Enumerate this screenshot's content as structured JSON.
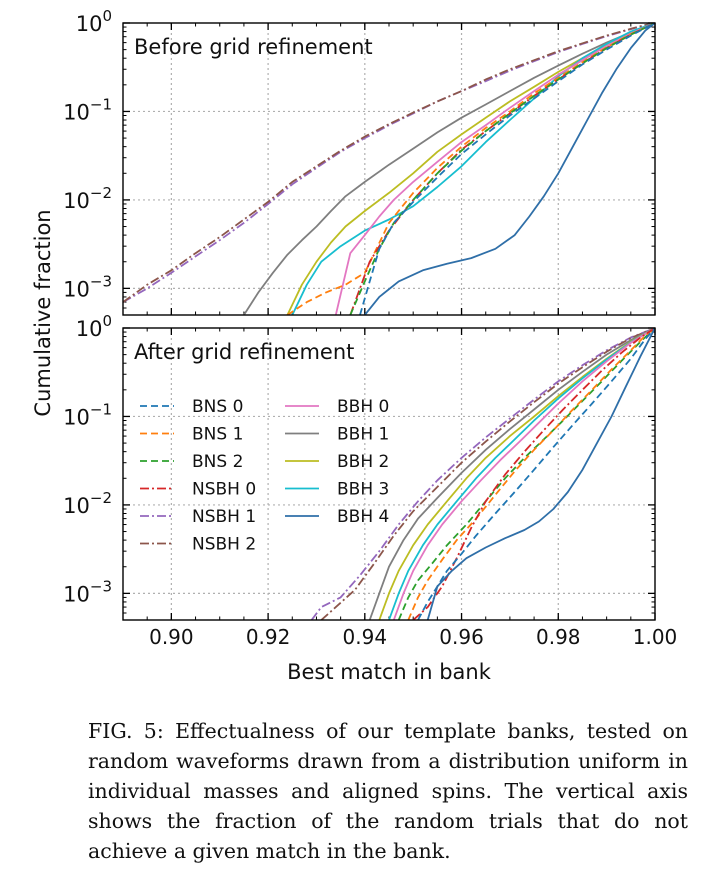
{
  "figure": {
    "ylabel": "Cumulative fraction",
    "xlabel": "Best match in bank",
    "xlim": [
      0.89,
      1.0
    ],
    "xticks": [
      {
        "v": 0.9,
        "label": "0.90"
      },
      {
        "v": 0.92,
        "label": "0.92"
      },
      {
        "v": 0.94,
        "label": "0.94"
      },
      {
        "v": 0.96,
        "label": "0.96"
      },
      {
        "v": 0.98,
        "label": "0.98"
      },
      {
        "v": 1.0,
        "label": "1.00"
      }
    ],
    "yticks": [
      {
        "exp": 0,
        "base": "10",
        "sup": "0"
      },
      {
        "exp": -1,
        "base": "10",
        "sup": "−1"
      },
      {
        "exp": -2,
        "base": "10",
        "sup": "−2"
      },
      {
        "exp": -3,
        "base": "10",
        "sup": "−3"
      }
    ]
  },
  "colors": {
    "BNS 0": "#1f77b4",
    "BNS 1": "#ff7f0e",
    "BNS 2": "#2ca02c",
    "NSBH 0": "#d62728",
    "NSBH 1": "#9467bd",
    "NSBH 2": "#8c564b",
    "BBH 0": "#e377c2",
    "BBH 1": "#7f7f7f",
    "BBH 2": "#bcbd22",
    "BBH 3": "#17becf",
    "BBH 4": "#2f6fa8"
  },
  "legend": [
    {
      "name": "BNS 0",
      "style": "dashed"
    },
    {
      "name": "BNS 1",
      "style": "dashed"
    },
    {
      "name": "BNS 2",
      "style": "dashed"
    },
    {
      "name": "NSBH 0",
      "style": "dashdot"
    },
    {
      "name": "NSBH 1",
      "style": "dashdot"
    },
    {
      "name": "NSBH 2",
      "style": "dashdot"
    },
    {
      "name": "BBH 0",
      "style": "solid"
    },
    {
      "name": "BBH 1",
      "style": "solid"
    },
    {
      "name": "BBH 2",
      "style": "solid"
    },
    {
      "name": "BBH 3",
      "style": "solid"
    },
    {
      "name": "BBH 4",
      "style": "solid"
    }
  ],
  "chart_data": [
    {
      "type": "line",
      "title": "Before grid refinement",
      "xlabel": "Best match in bank",
      "ylabel": "Cumulative fraction",
      "yscale": "log",
      "xlim": [
        0.89,
        1.0
      ],
      "ylim": [
        0.0005,
        1.0
      ],
      "grid": true,
      "series": [
        {
          "name": "NSBH 1",
          "style": "dashdot",
          "x": [
            0.89,
            0.895,
            0.9,
            0.905,
            0.91,
            0.915,
            0.92,
            0.925,
            0.93,
            0.935,
            0.94,
            0.945,
            0.95,
            0.955,
            0.96,
            0.965,
            0.97,
            0.975,
            0.98,
            0.985,
            0.99,
            0.995,
            0.998,
            1.0
          ],
          "y": [
            0.0007,
            0.001,
            0.0015,
            0.0023,
            0.0035,
            0.0055,
            0.009,
            0.015,
            0.023,
            0.035,
            0.05,
            0.07,
            0.095,
            0.13,
            0.17,
            0.22,
            0.29,
            0.37,
            0.47,
            0.58,
            0.71,
            0.85,
            0.95,
            1.0
          ]
        },
        {
          "name": "NSBH 2",
          "style": "dashdot",
          "x": [
            0.89,
            0.895,
            0.9,
            0.905,
            0.91,
            0.915,
            0.92,
            0.925,
            0.93,
            0.935,
            0.94,
            0.945,
            0.95,
            0.955,
            0.96,
            0.965,
            0.97,
            0.975,
            0.98,
            0.985,
            0.99,
            0.995,
            0.998,
            1.0
          ],
          "y": [
            0.0007,
            0.0011,
            0.0016,
            0.0025,
            0.0038,
            0.006,
            0.0095,
            0.016,
            0.024,
            0.036,
            0.052,
            0.072,
            0.097,
            0.13,
            0.17,
            0.23,
            0.3,
            0.38,
            0.48,
            0.59,
            0.72,
            0.86,
            0.95,
            1.0
          ]
        },
        {
          "name": "BBH 1",
          "style": "solid",
          "x": [
            0.915,
            0.918,
            0.921,
            0.924,
            0.927,
            0.93,
            0.933,
            0.936,
            0.94,
            0.945,
            0.95,
            0.955,
            0.96,
            0.965,
            0.97,
            0.975,
            0.98,
            0.985,
            0.99,
            0.995,
            1.0
          ],
          "y": [
            0.0005,
            0.0009,
            0.0015,
            0.0024,
            0.0035,
            0.005,
            0.0075,
            0.011,
            0.016,
            0.025,
            0.038,
            0.058,
            0.085,
            0.12,
            0.17,
            0.24,
            0.33,
            0.45,
            0.6,
            0.78,
            1.0
          ]
        },
        {
          "name": "BBH 2",
          "style": "solid",
          "x": [
            0.924,
            0.927,
            0.93,
            0.933,
            0.936,
            0.94,
            0.945,
            0.95,
            0.955,
            0.96,
            0.965,
            0.97,
            0.975,
            0.98,
            0.985,
            0.99,
            0.995,
            1.0
          ],
          "y": [
            0.0005,
            0.0011,
            0.002,
            0.0033,
            0.005,
            0.0075,
            0.012,
            0.02,
            0.035,
            0.055,
            0.085,
            0.13,
            0.19,
            0.28,
            0.4,
            0.56,
            0.76,
            1.0
          ]
        },
        {
          "name": "BBH 3",
          "style": "solid",
          "x": [
            0.925,
            0.928,
            0.931,
            0.935,
            0.94,
            0.945,
            0.95,
            0.955,
            0.96,
            0.965,
            0.97,
            0.975,
            0.98,
            0.985,
            0.99,
            0.995,
            1.0
          ],
          "y": [
            0.0005,
            0.0011,
            0.002,
            0.003,
            0.0045,
            0.006,
            0.0085,
            0.014,
            0.024,
            0.045,
            0.08,
            0.14,
            0.25,
            0.4,
            0.58,
            0.8,
            1.0
          ]
        },
        {
          "name": "BBH 0",
          "style": "solid",
          "x": [
            0.934,
            0.937,
            0.94,
            0.943,
            0.946,
            0.95,
            0.955,
            0.96,
            0.965,
            0.97,
            0.975,
            0.98,
            0.985,
            0.99,
            0.995,
            1.0
          ],
          "y": [
            0.0005,
            0.0025,
            0.004,
            0.0065,
            0.01,
            0.016,
            0.027,
            0.045,
            0.07,
            0.11,
            0.17,
            0.26,
            0.38,
            0.55,
            0.76,
            1.0
          ]
        },
        {
          "name": "BNS 1",
          "style": "dashed",
          "x": [
            0.924,
            0.928,
            0.932,
            0.936,
            0.94,
            0.945,
            0.95,
            0.955,
            0.96,
            0.965,
            0.97,
            0.975,
            0.98,
            0.985,
            0.99,
            0.995,
            1.0
          ],
          "y": [
            0.0005,
            0.0007,
            0.0009,
            0.0011,
            0.0015,
            0.0055,
            0.012,
            0.023,
            0.04,
            0.065,
            0.1,
            0.16,
            0.24,
            0.36,
            0.53,
            0.75,
            1.0
          ]
        },
        {
          "name": "NSBH 0",
          "style": "dashdot",
          "x": [
            0.937,
            0.941,
            0.945,
            0.95,
            0.955,
            0.96,
            0.965,
            0.97,
            0.975,
            0.98,
            0.985,
            0.99,
            0.995,
            1.0
          ],
          "y": [
            0.0005,
            0.002,
            0.0045,
            0.01,
            0.02,
            0.037,
            0.06,
            0.095,
            0.15,
            0.23,
            0.35,
            0.52,
            0.74,
            1.0
          ]
        },
        {
          "name": "BNS 2",
          "style": "dashed",
          "x": [
            0.937,
            0.94,
            0.943,
            0.946,
            0.95,
            0.955,
            0.96,
            0.965,
            0.97,
            0.975,
            0.98,
            0.985,
            0.99,
            0.995,
            1.0
          ],
          "y": [
            0.0005,
            0.0012,
            0.0028,
            0.0055,
            0.01,
            0.02,
            0.036,
            0.06,
            0.095,
            0.15,
            0.23,
            0.35,
            0.52,
            0.74,
            1.0
          ]
        },
        {
          "name": "BNS 0",
          "style": "dashed",
          "x": [
            0.939,
            0.941,
            0.943,
            0.946,
            0.95,
            0.955,
            0.96,
            0.965,
            0.97,
            0.975,
            0.98,
            0.985,
            0.99,
            0.995,
            1.0
          ],
          "y": [
            0.0005,
            0.0012,
            0.0028,
            0.0055,
            0.0095,
            0.018,
            0.033,
            0.055,
            0.09,
            0.14,
            0.22,
            0.34,
            0.5,
            0.72,
            1.0
          ]
        },
        {
          "name": "BBH 4",
          "style": "solid",
          "x": [
            0.94,
            0.943,
            0.947,
            0.952,
            0.957,
            0.962,
            0.967,
            0.971,
            0.974,
            0.977,
            0.98,
            0.983,
            0.986,
            0.989,
            0.992,
            0.995,
            0.998,
            1.0
          ],
          "y": [
            0.0005,
            0.0008,
            0.0012,
            0.0016,
            0.0019,
            0.0022,
            0.0028,
            0.004,
            0.0065,
            0.011,
            0.02,
            0.04,
            0.08,
            0.16,
            0.3,
            0.52,
            0.82,
            1.0
          ]
        }
      ]
    },
    {
      "type": "line",
      "title": "After grid refinement",
      "xlabel": "Best match in bank",
      "ylabel": "Cumulative fraction",
      "yscale": "log",
      "xlim": [
        0.89,
        1.0
      ],
      "ylim": [
        0.0005,
        1.0
      ],
      "grid": true,
      "legend_position": "left",
      "series": [
        {
          "name": "NSBH 1",
          "style": "dashdot",
          "x": [
            0.929,
            0.931,
            0.935,
            0.939,
            0.943,
            0.947,
            0.951,
            0.955,
            0.96,
            0.965,
            0.97,
            0.975,
            0.98,
            0.985,
            0.99,
            0.995,
            1.0
          ],
          "y": [
            0.0005,
            0.0007,
            0.0009,
            0.0016,
            0.003,
            0.006,
            0.011,
            0.019,
            0.034,
            0.058,
            0.095,
            0.155,
            0.25,
            0.38,
            0.56,
            0.78,
            1.0
          ]
        },
        {
          "name": "NSBH 2",
          "style": "dashdot",
          "x": [
            0.931,
            0.934,
            0.938,
            0.942,
            0.946,
            0.95,
            0.955,
            0.96,
            0.965,
            0.97,
            0.975,
            0.98,
            0.985,
            0.99,
            0.995,
            1.0
          ],
          "y": [
            0.0005,
            0.0007,
            0.0011,
            0.0022,
            0.0045,
            0.0085,
            0.016,
            0.03,
            0.052,
            0.088,
            0.145,
            0.235,
            0.36,
            0.54,
            0.77,
            1.0
          ]
        },
        {
          "name": "BBH 1",
          "style": "solid",
          "x": [
            0.941,
            0.943,
            0.945,
            0.948,
            0.951,
            0.955,
            0.96,
            0.965,
            0.97,
            0.975,
            0.98,
            0.985,
            0.99,
            0.995,
            1.0
          ],
          "y": [
            0.0005,
            0.001,
            0.002,
            0.004,
            0.007,
            0.012,
            0.023,
            0.042,
            0.072,
            0.12,
            0.2,
            0.32,
            0.5,
            0.73,
            1.0
          ]
        },
        {
          "name": "BBH 2",
          "style": "solid",
          "x": [
            0.943,
            0.945,
            0.947,
            0.95,
            0.953,
            0.957,
            0.961,
            0.965,
            0.97,
            0.975,
            0.98,
            0.985,
            0.99,
            0.995,
            1.0
          ],
          "y": [
            0.0005,
            0.001,
            0.0018,
            0.0035,
            0.006,
            0.011,
            0.02,
            0.034,
            0.06,
            0.1,
            0.17,
            0.28,
            0.45,
            0.7,
            1.0
          ]
        },
        {
          "name": "BBH 3",
          "style": "solid",
          "x": [
            0.945,
            0.947,
            0.949,
            0.952,
            0.955,
            0.959,
            0.963,
            0.967,
            0.971,
            0.975,
            0.98,
            0.985,
            0.99,
            0.995,
            1.0
          ],
          "y": [
            0.0005,
            0.001,
            0.0018,
            0.0035,
            0.006,
            0.011,
            0.02,
            0.034,
            0.055,
            0.09,
            0.16,
            0.27,
            0.44,
            0.69,
            1.0
          ]
        },
        {
          "name": "BBH 0",
          "style": "solid",
          "x": [
            0.946,
            0.948,
            0.95,
            0.953,
            0.956,
            0.96,
            0.964,
            0.968,
            0.972,
            0.976,
            0.98,
            0.985,
            0.99,
            0.995,
            1.0
          ],
          "y": [
            0.0005,
            0.001,
            0.0018,
            0.0035,
            0.006,
            0.011,
            0.019,
            0.032,
            0.052,
            0.085,
            0.14,
            0.25,
            0.42,
            0.68,
            1.0
          ]
        },
        {
          "name": "BNS 2",
          "style": "dashed",
          "x": [
            0.947,
            0.949,
            0.951,
            0.954,
            0.957,
            0.961,
            0.965,
            0.969,
            0.973,
            0.977,
            0.981,
            0.985,
            0.989,
            0.993,
            0.997,
            1.0
          ],
          "y": [
            0.0005,
            0.0009,
            0.0014,
            0.0022,
            0.0035,
            0.006,
            0.011,
            0.02,
            0.034,
            0.055,
            0.09,
            0.15,
            0.25,
            0.42,
            0.7,
            1.0
          ]
        },
        {
          "name": "BNS 1",
          "style": "dashed",
          "x": [
            0.949,
            0.951,
            0.953,
            0.956,
            0.959,
            0.963,
            0.967,
            0.971,
            0.975,
            0.979,
            0.983,
            0.987,
            0.991,
            0.995,
            0.998,
            1.0
          ],
          "y": [
            0.0005,
            0.0009,
            0.0014,
            0.0024,
            0.004,
            0.007,
            0.013,
            0.024,
            0.042,
            0.07,
            0.12,
            0.2,
            0.34,
            0.56,
            0.82,
            1.0
          ]
        },
        {
          "name": "NSBH 0",
          "style": "dashdot",
          "x": [
            0.95,
            0.953,
            0.956,
            0.959,
            0.962,
            0.965,
            0.969,
            0.973,
            0.977,
            0.981,
            0.985,
            0.989,
            0.993,
            0.997,
            1.0
          ],
          "y": [
            0.0005,
            0.0007,
            0.0012,
            0.0025,
            0.0055,
            0.011,
            0.022,
            0.04,
            0.07,
            0.12,
            0.2,
            0.33,
            0.52,
            0.78,
            1.0
          ]
        },
        {
          "name": "BNS 0",
          "style": "dashed",
          "x": [
            0.951,
            0.953,
            0.955,
            0.957,
            0.96,
            0.963,
            0.967,
            0.971,
            0.975,
            0.979,
            0.983,
            0.987,
            0.991,
            0.995,
            0.998,
            1.0
          ],
          "y": [
            0.0005,
            0.0008,
            0.0012,
            0.0018,
            0.0028,
            0.0045,
            0.008,
            0.014,
            0.025,
            0.045,
            0.08,
            0.14,
            0.25,
            0.45,
            0.75,
            1.0
          ]
        },
        {
          "name": "BBH 4",
          "style": "solid",
          "x": [
            0.953,
            0.955,
            0.958,
            0.961,
            0.965,
            0.969,
            0.973,
            0.976,
            0.979,
            0.982,
            0.985,
            0.988,
            0.991,
            0.994,
            0.997,
            1.0
          ],
          "y": [
            0.0005,
            0.0012,
            0.0018,
            0.0025,
            0.0033,
            0.0042,
            0.0052,
            0.0065,
            0.009,
            0.014,
            0.025,
            0.05,
            0.1,
            0.22,
            0.48,
            1.0
          ]
        }
      ]
    }
  ],
  "caption": "FIG. 5: Effectualness of our template banks, tested on random waveforms drawn from a distribution uniform in individual masses and aligned spins. The vertical axis shows the fraction of the random trials that do not achieve a given match in the bank."
}
